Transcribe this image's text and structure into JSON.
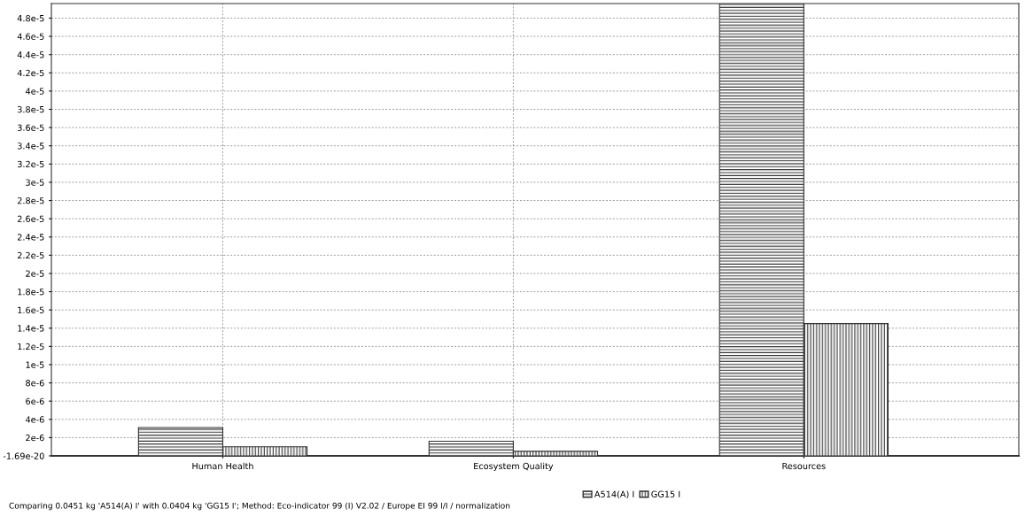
{
  "chart_data": {
    "type": "bar",
    "categories": [
      "Human Health",
      "Ecosystem Quality",
      "Resources"
    ],
    "series": [
      {
        "name": "A514(A) I",
        "color": "#333333",
        "values": [
          3.1e-06,
          1.6e-06,
          4.96e-05
        ]
      },
      {
        "name": "GG15 I",
        "color": "#333333",
        "values": [
          1e-06,
          5e-07,
          1.45e-05
        ]
      }
    ],
    "ylim": [
      0,
      4.96e-05
    ],
    "yticks": [
      {
        "value": 0,
        "label": "-1.69e-20"
      },
      {
        "value": 2e-06,
        "label": "2e-6"
      },
      {
        "value": 4e-06,
        "label": "4e-6"
      },
      {
        "value": 6e-06,
        "label": "6e-6"
      },
      {
        "value": 8e-06,
        "label": "8e-6"
      },
      {
        "value": 1e-05,
        "label": "1e-5"
      },
      {
        "value": 1.2e-05,
        "label": "1.2e-5"
      },
      {
        "value": 1.4e-05,
        "label": "1.4e-5"
      },
      {
        "value": 1.6e-05,
        "label": "1.6e-5"
      },
      {
        "value": 1.8e-05,
        "label": "1.8e-5"
      },
      {
        "value": 2e-05,
        "label": "2e-5"
      },
      {
        "value": 2.2e-05,
        "label": "2.2e-5"
      },
      {
        "value": 2.4e-05,
        "label": "2.4e-5"
      },
      {
        "value": 2.6e-05,
        "label": "2.6e-5"
      },
      {
        "value": 2.8e-05,
        "label": "2.8e-5"
      },
      {
        "value": 3e-05,
        "label": "3e-5"
      },
      {
        "value": 3.2e-05,
        "label": "3.2e-5"
      },
      {
        "value": 3.4e-05,
        "label": "3.4e-5"
      },
      {
        "value": 3.6e-05,
        "label": "3.6e-5"
      },
      {
        "value": 3.8e-05,
        "label": "3.8e-5"
      },
      {
        "value": 4e-05,
        "label": "4e-5"
      },
      {
        "value": 4.2e-05,
        "label": "4.2e-5"
      },
      {
        "value": 4.4e-05,
        "label": "4.4e-5"
      },
      {
        "value": 4.6e-05,
        "label": "4.6e-5"
      },
      {
        "value": 4.8e-05,
        "label": "4.8e-5"
      }
    ],
    "grid": true,
    "legend": "bottom",
    "annotations": [
      "Comparing 0.0451 kg 'A514(A) I' with 0.0404 kg 'GG15 I'; Method: Eco-indicator 99 (I) V2.02 / Europe EI 99 I/I / normalization"
    ]
  }
}
